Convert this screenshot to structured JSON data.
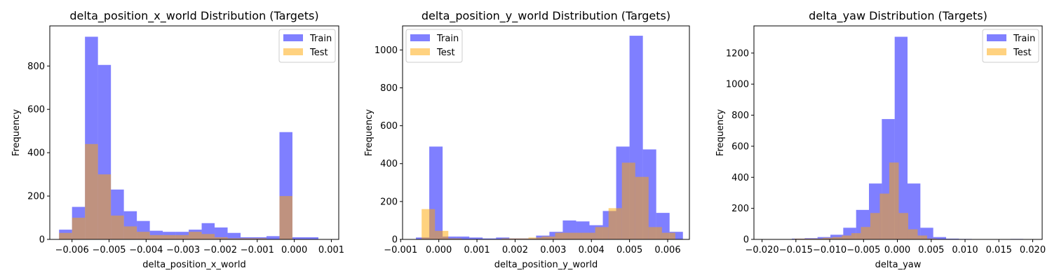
{
  "chart_data": [
    {
      "type": "histogram",
      "title": "delta_position_x_world Distribution (Targets)",
      "xlabel": "delta_position_x_world",
      "ylabel": "Frequency",
      "xlim": [
        -0.0066,
        0.0012
      ],
      "ylim": [
        0,
        985
      ],
      "xticks": [
        -0.006,
        -0.005,
        -0.004,
        -0.003,
        -0.002,
        -0.001,
        0.0,
        0.001
      ],
      "xtick_labels": [
        "−0.006",
        "−0.005",
        "−0.004",
        "−0.003",
        "−0.002",
        "−0.001",
        "0.000",
        "0.001"
      ],
      "yticks": [
        0,
        200,
        400,
        600,
        800
      ],
      "legend_position": "top-right",
      "series": [
        {
          "name": "Train",
          "color": "#0000ff",
          "opacity": 0.5,
          "bin_edges": [
            -0.00635,
            -0.006,
            -0.00565,
            -0.0053,
            -0.00495,
            -0.0046,
            -0.00425,
            -0.0039,
            -0.00355,
            -0.0032,
            -0.00285,
            -0.0025,
            -0.00215,
            -0.0018,
            -0.00145,
            -0.0011,
            -0.00075,
            -0.0004,
            -5e-05,
            0.0003,
            0.00065
          ],
          "counts": [
            45,
            150,
            935,
            805,
            230,
            130,
            85,
            40,
            35,
            35,
            45,
            75,
            55,
            30,
            10,
            10,
            15,
            495,
            10,
            10
          ]
        },
        {
          "name": "Test",
          "color": "#ffa500",
          "opacity": 0.5,
          "bin_edges": [
            -0.00635,
            -0.006,
            -0.00565,
            -0.0053,
            -0.00495,
            -0.0046,
            -0.00425,
            -0.0039,
            -0.00355,
            -0.0032,
            -0.00285,
            -0.0025,
            -0.00215,
            -0.0018,
            -0.00145,
            -0.0011,
            -0.00075,
            -0.0004,
            -5e-05,
            0.0003,
            0.00065
          ],
          "counts": [
            30,
            100,
            440,
            300,
            110,
            60,
            35,
            20,
            20,
            20,
            35,
            25,
            10,
            5,
            5,
            5,
            0,
            200,
            0,
            0
          ]
        }
      ]
    },
    {
      "type": "histogram",
      "title": "delta_position_y_world Distribution (Targets)",
      "xlabel": "delta_position_y_world",
      "ylabel": "Frequency",
      "xlim": [
        -0.00095,
        0.00657
      ],
      "ylim": [
        0,
        1127
      ],
      "xticks": [
        -0.001,
        0.0,
        0.001,
        0.002,
        0.003,
        0.004,
        0.005,
        0.006
      ],
      "xtick_labels": [
        "−0.001",
        "0.000",
        "0.001",
        "0.002",
        "0.003",
        "0.004",
        "0.005",
        "0.006"
      ],
      "yticks": [
        0,
        200,
        400,
        600,
        800,
        1000
      ],
      "legend_position": "top-left",
      "series": [
        {
          "name": "Train",
          "color": "#0000ff",
          "opacity": 0.5,
          "bin_edges": [
            -0.0006,
            -0.00025,
            0.0001,
            0.00045,
            0.0008,
            0.00115,
            0.0015,
            0.00185,
            0.0022,
            0.00255,
            0.0029,
            0.00325,
            0.0036,
            0.00395,
            0.0043,
            0.00465,
            0.005,
            0.00535,
            0.0057,
            0.00605,
            0.0064
          ],
          "counts": [
            10,
            490,
            15,
            15,
            10,
            5,
            10,
            5,
            5,
            20,
            40,
            100,
            95,
            75,
            150,
            490,
            1075,
            475,
            140,
            40
          ]
        },
        {
          "name": "Test",
          "color": "#ffa500",
          "opacity": 0.5,
          "bin_edges": [
            -0.00045,
            -0.0001,
            0.00025,
            0.0006,
            0.00095,
            0.0013,
            0.00165,
            0.002,
            0.00235,
            0.0027,
            0.00305,
            0.0034,
            0.00375,
            0.0041,
            0.00445,
            0.0048,
            0.00515,
            0.0055,
            0.00585,
            0.0062
          ],
          "counts": [
            160,
            45,
            5,
            0,
            0,
            0,
            5,
            5,
            10,
            15,
            35,
            35,
            35,
            65,
            165,
            405,
            330,
            65,
            35
          ]
        }
      ]
    },
    {
      "type": "histogram",
      "title": "delta_yaw Distribution (Targets)",
      "xlabel": "delta_yaw",
      "ylabel": "Frequency",
      "xlim": [
        -0.0212,
        0.0214
      ],
      "ylim": [
        0,
        1375
      ],
      "xticks": [
        -0.02,
        -0.015,
        -0.01,
        -0.005,
        0.0,
        0.005,
        0.01,
        0.015,
        0.02
      ],
      "xtick_labels": [
        "−0.020",
        "−0.015",
        "−0.010",
        "−0.005",
        "0.000",
        "0.005",
        "0.010",
        "0.015",
        "0.020"
      ],
      "yticks": [
        0,
        200,
        400,
        600,
        800,
        1000,
        1200
      ],
      "legend_position": "top-right",
      "series": [
        {
          "name": "Train",
          "color": "#0000ff",
          "opacity": 0.5,
          "bin_edges": [
            -0.0194,
            -0.0175,
            -0.0156,
            -0.0137,
            -0.0118,
            -0.0099,
            -0.008,
            -0.0061,
            -0.0042,
            -0.0023,
            -0.0004,
            0.0015,
            0.0034,
            0.0053,
            0.0072,
            0.0091,
            0.011,
            0.0129,
            0.0148,
            0.0167,
            0.0186,
            0.0205
          ],
          "counts": [
            0,
            2,
            5,
            8,
            15,
            30,
            75,
            190,
            360,
            775,
            1305,
            360,
            75,
            15,
            5,
            3,
            2,
            2,
            0,
            3,
            2
          ]
        },
        {
          "name": "Test",
          "color": "#ffa500",
          "opacity": 0.5,
          "bin_edges": [
            -0.0166,
            -0.0152,
            -0.0138,
            -0.0124,
            -0.011,
            -0.0096,
            -0.0082,
            -0.0068,
            -0.0054,
            -0.004,
            -0.0026,
            -0.0012,
            0.0002,
            0.0016,
            0.003,
            0.0044,
            0.0058
          ],
          "counts": [
            0,
            5,
            5,
            5,
            10,
            15,
            25,
            40,
            80,
            170,
            295,
            495,
            170,
            65,
            25,
            5
          ]
        }
      ]
    }
  ]
}
